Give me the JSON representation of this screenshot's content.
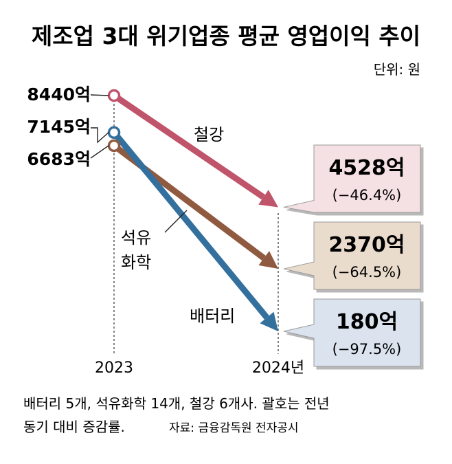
{
  "title": "제조업 3대 위기업종 평균 영업이익 추이",
  "unit": "단위: 원",
  "note_line1": "배터리 5개, 석유화학 14개, 철강 6개사. 괄호는 전년",
  "note_line2": "동기 대비 증감률.",
  "source": "자료: 금융감독원 전자공시",
  "chart_data": {
    "type": "line",
    "title": "제조업 3대 위기업종 평균 영업이익 추이",
    "unit": "단위: 원",
    "categories": [
      "2023",
      "2024년"
    ],
    "series": [
      {
        "name": "철강",
        "values": [
          8440,
          4528
        ],
        "start_label": "8440억",
        "end_label": "4528억",
        "change": "(−46.4%)",
        "color": "#c0546a",
        "box_color": "#f5e1e3"
      },
      {
        "name": "석유화학",
        "label_lines": [
          "석유",
          "화학"
        ],
        "values": [
          6683,
          2370
        ],
        "start_label": "6683억",
        "end_label": "2370억",
        "change": "(−64.5%)",
        "color": "#8f5a40",
        "box_color": "#eadccd"
      },
      {
        "name": "배터리",
        "values": [
          7145,
          180
        ],
        "start_label": "7145억",
        "end_label": "180억",
        "change": "(−97.5%)",
        "color": "#34709e",
        "box_color": "#dbe3ef"
      }
    ]
  }
}
